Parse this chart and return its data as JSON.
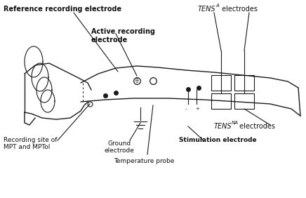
{
  "bg_color": "#ffffff",
  "line_color": "#1a1a1a",
  "text_color": "#111111",
  "labels": {
    "ref_electrode": "Reference recording electrode",
    "active_electrode": "Active recording\nelectrode",
    "recording_site": "Recording site of\nMPT and MPTol",
    "ground_electrode": "Ground\nelectrode",
    "temp_probe": "Temperature probe",
    "stim_electrode": "Stimulation electrode",
    "tens_a": "TENS",
    "tens_a_sub": "A",
    "tens_a_suffix": " electrodes",
    "tens_na": "TENS",
    "tens_na_sub": "NA",
    "tens_na_suffix": " electrodes"
  },
  "coord": {
    "arm_top_x": [
      2.2,
      2.8,
      3.4,
      4.0,
      4.8,
      5.6,
      6.4,
      7.2,
      8.0,
      8.6,
      9.0,
      9.3
    ],
    "arm_top_y": [
      5.2,
      5.55,
      5.7,
      5.65,
      5.5,
      5.38,
      5.3,
      5.22,
      5.15,
      5.05,
      4.9,
      4.6
    ],
    "arm_bot_x": [
      2.2,
      2.8,
      3.4,
      4.0,
      5.0,
      6.0,
      7.0,
      8.0,
      8.8,
      9.2,
      9.3
    ],
    "arm_bot_y": [
      4.3,
      4.35,
      4.4,
      4.45,
      4.42,
      4.38,
      4.32,
      4.25,
      4.15,
      4.0,
      3.7
    ]
  }
}
